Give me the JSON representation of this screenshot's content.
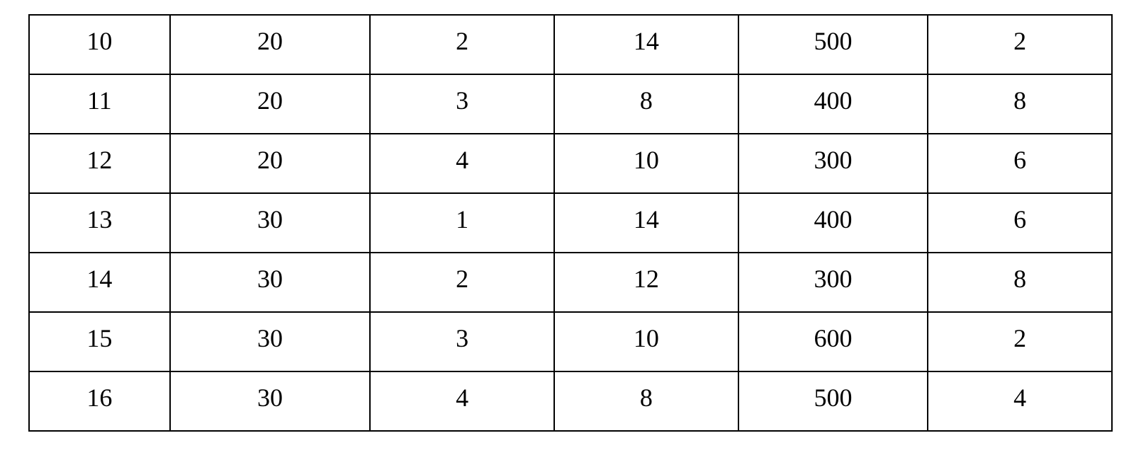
{
  "table": {
    "type": "table",
    "columns": 6,
    "rows": [
      [
        "10",
        "20",
        "2",
        "14",
        "500",
        "2"
      ],
      [
        "11",
        "20",
        "3",
        "8",
        "400",
        "8"
      ],
      [
        "12",
        "20",
        "4",
        "10",
        "300",
        "6"
      ],
      [
        "13",
        "30",
        "1",
        "14",
        "400",
        "6"
      ],
      [
        "14",
        "30",
        "2",
        "12",
        "300",
        "8"
      ],
      [
        "15",
        "30",
        "3",
        "10",
        "600",
        "2"
      ],
      [
        "16",
        "30",
        "4",
        "8",
        "500",
        "4"
      ]
    ],
    "border_color": "#000000",
    "border_width": 2,
    "background_color": "#ffffff",
    "text_color": "#000000",
    "font_family": "Times New Roman",
    "font_size": 36,
    "cell_alignment": "center",
    "column_widths_pct": [
      13,
      18.5,
      17,
      17,
      17.5,
      17
    ]
  }
}
